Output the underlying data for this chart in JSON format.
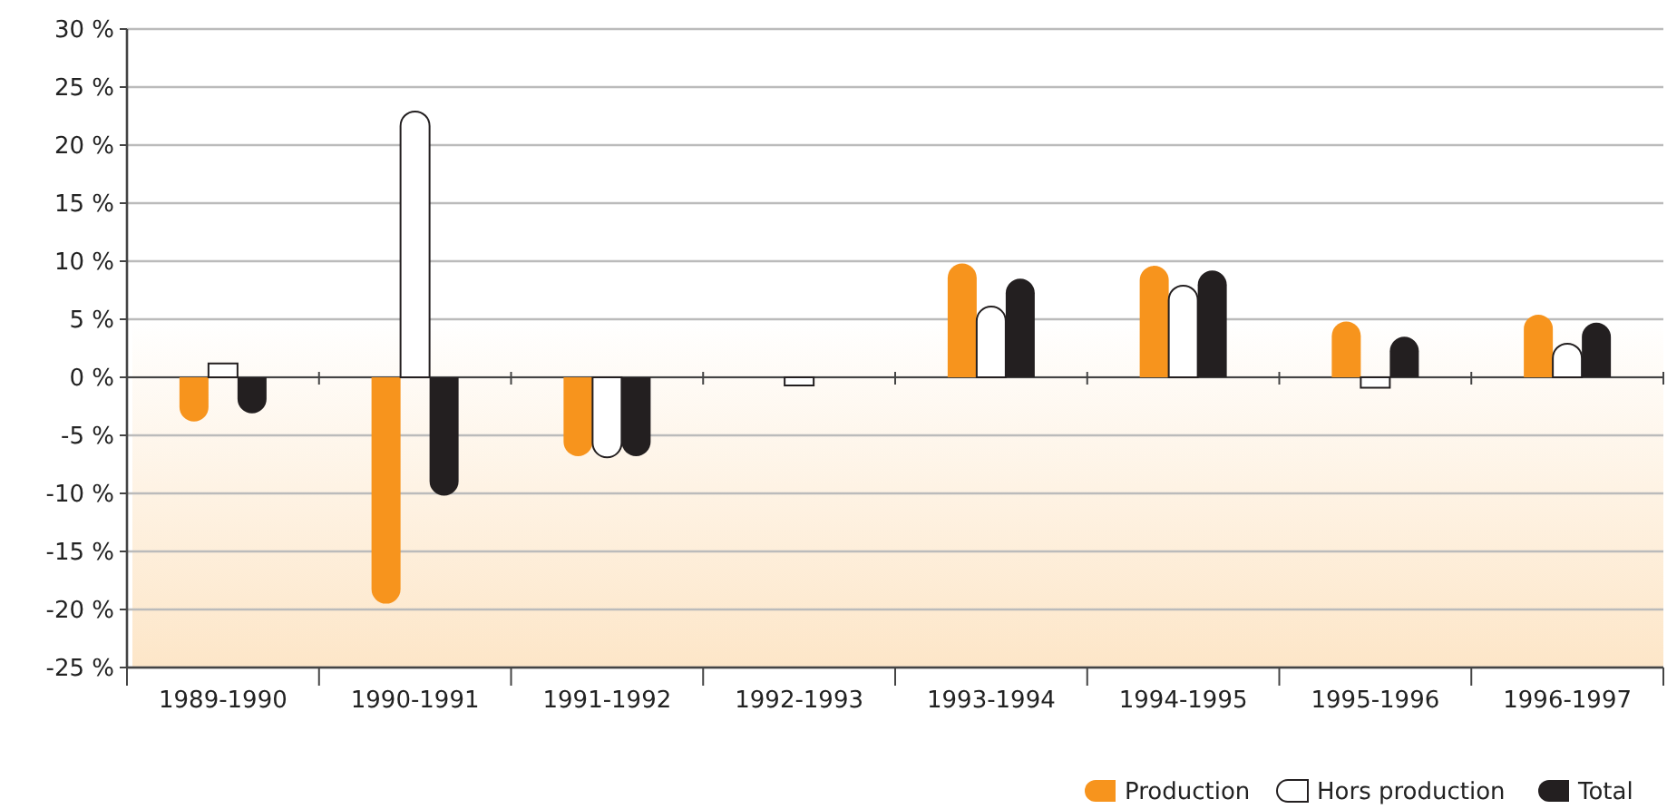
{
  "chart_data": {
    "type": "bar",
    "categories": [
      "1989-1990",
      "1990-1991",
      "1991-1992",
      "1992-1993",
      "1993-1994",
      "1994-1995",
      "1995-1996",
      "1996-1997"
    ],
    "series": [
      {
        "name": "Production",
        "color": "#f7941d",
        "values": [
          -3.8,
          -19.5,
          -6.8,
          0,
          9.8,
          9.6,
          4.8,
          5.4
        ]
      },
      {
        "name": "Hors production",
        "color": "#ffffff",
        "values": [
          1.2,
          22.9,
          -6.9,
          -0.7,
          6.1,
          7.9,
          -0.9,
          2.9
        ]
      },
      {
        "name": "Total",
        "color": "#231f20",
        "values": [
          -3.1,
          -10.2,
          -6.8,
          0,
          8.5,
          9.2,
          3.5,
          4.7
        ]
      }
    ],
    "ylim": [
      -25,
      30
    ],
    "yticks": [
      {
        "value": -25,
        "label": "-25 %"
      },
      {
        "value": -20,
        "label": "-20 %"
      },
      {
        "value": -15,
        "label": "-15 %"
      },
      {
        "value": -10,
        "label": "-10 %"
      },
      {
        "value": -5,
        "label": "-5 %"
      },
      {
        "value": 0,
        "label": "0 %"
      },
      {
        "value": 5,
        "label": "5 %"
      },
      {
        "value": 10,
        "label": "10 %"
      },
      {
        "value": 15,
        "label": "15 %"
      },
      {
        "value": 20,
        "label": "20 %"
      },
      {
        "value": 25,
        "label": "25 %"
      },
      {
        "value": 30,
        "label": "30 %"
      }
    ],
    "grid": "y",
    "legend": "bottom right"
  }
}
